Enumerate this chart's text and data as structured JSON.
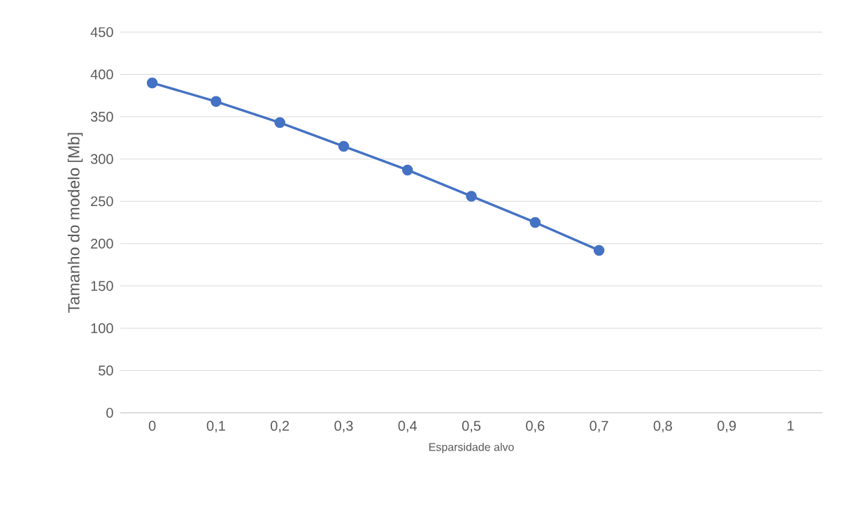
{
  "chart_data": {
    "type": "line",
    "xlabel": "Esparsidade alvo",
    "ylabel": "Tamanho do modelo [Mb]",
    "categories": [
      "0",
      "0,1",
      "0,2",
      "0,3",
      "0,4",
      "0,5",
      "0,6",
      "0,7",
      "0,8",
      "0,9",
      "1"
    ],
    "series": [
      {
        "color": "#4472c4",
        "values": [
          390,
          368,
          343,
          315,
          287,
          256,
          225,
          192,
          null,
          null,
          null
        ]
      }
    ],
    "ylim": [
      0,
      450
    ],
    "yticks": [
      0,
      50,
      100,
      150,
      200,
      250,
      300,
      350,
      400,
      450
    ],
    "grid": "y",
    "marker": "circle",
    "line_style": "solid"
  }
}
